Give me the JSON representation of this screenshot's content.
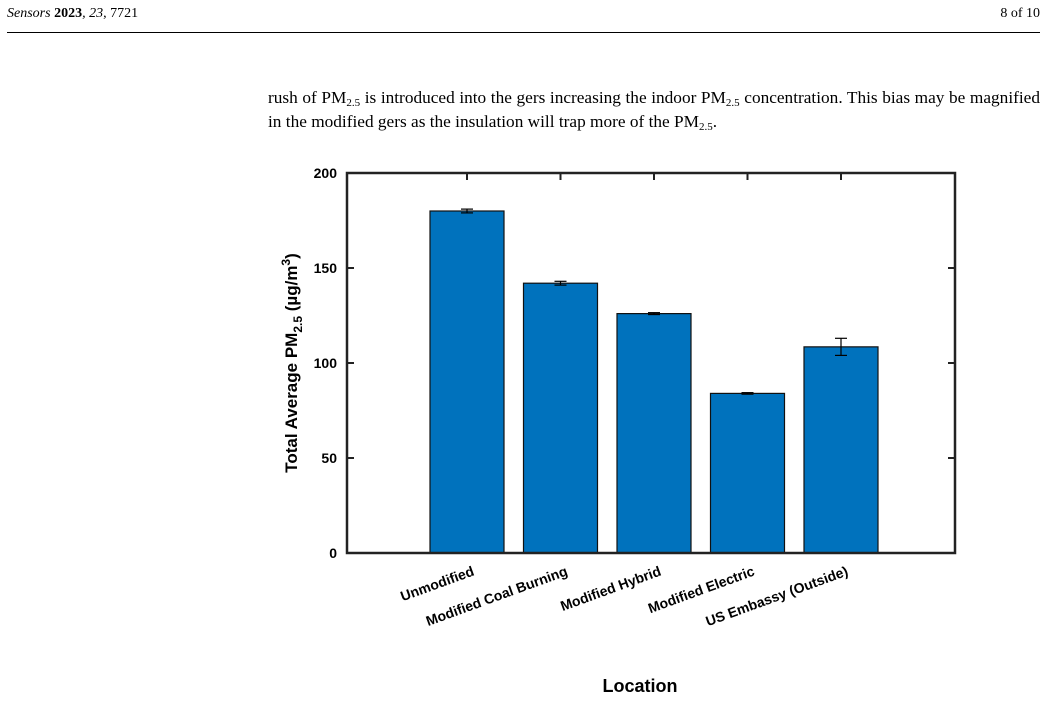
{
  "header": {
    "left": [
      "Sensors",
      " 2023",
      ", 23",
      ", 7721"
    ],
    "right": "8 of 10"
  },
  "paragraph": [
    "rush of PM",
    "2.5",
    " is introduced into the gers increasing the indoor PM",
    "2.5",
    " concentration. This bias may be magnified in the modified gers as the insulation will trap more of the PM",
    "2.5",
    "."
  ],
  "chart_data": {
    "type": "bar",
    "x_label": "Location",
    "y_label": [
      "Total Average PM",
      "2.5",
      " (µg/m",
      "3",
      ")"
    ],
    "categories": [
      "Unmodified",
      "Modified Coal Burning",
      "Modified Hybrid",
      "Modified Electric",
      "US Embassy (Outside)"
    ],
    "values": [
      180,
      142,
      126,
      84,
      108.5
    ],
    "errors": [
      1,
      1,
      0.5,
      0.4,
      4.5
    ],
    "color": "#0072bd",
    "ylim": [
      0,
      200
    ],
    "yticks": [
      0,
      50,
      100,
      150,
      200
    ]
  }
}
